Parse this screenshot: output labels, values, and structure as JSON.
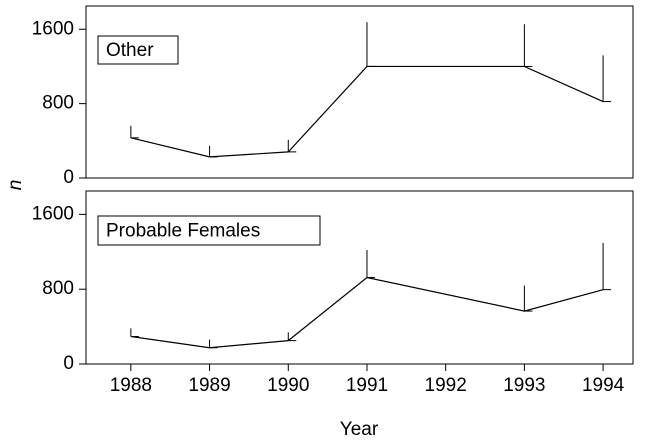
{
  "chart_data": [
    {
      "type": "line",
      "label": "Other",
      "ylabel": "n",
      "x": [
        1988,
        1989,
        1990,
        1991,
        1993,
        1994
      ],
      "values": [
        432,
        227,
        281,
        1200,
        1200,
        822
      ],
      "errors": [
        130,
        119,
        130,
        476,
        454,
        497
      ],
      "color": "#000000",
      "xlim": [
        1987.43,
        1994.38
      ],
      "ylim": [
        0,
        1850
      ],
      "yticks": [
        0,
        800,
        1600
      ]
    },
    {
      "type": "line",
      "label": "Probable Females",
      "xlabel": "Year",
      "x": [
        1988,
        1989,
        1990,
        1991,
        1993,
        1994
      ],
      "values": [
        294,
        174,
        250,
        925,
        566,
        795
      ],
      "errors": [
        87,
        87,
        87,
        294,
        272,
        500
      ],
      "color": "#000000",
      "xlim": [
        1987.43,
        1994.38
      ],
      "ylim": [
        0,
        1850
      ],
      "yticks": [
        0,
        800,
        1600
      ],
      "xticks": [
        1988,
        1989,
        1990,
        1991,
        1992,
        1993,
        1994
      ]
    }
  ]
}
